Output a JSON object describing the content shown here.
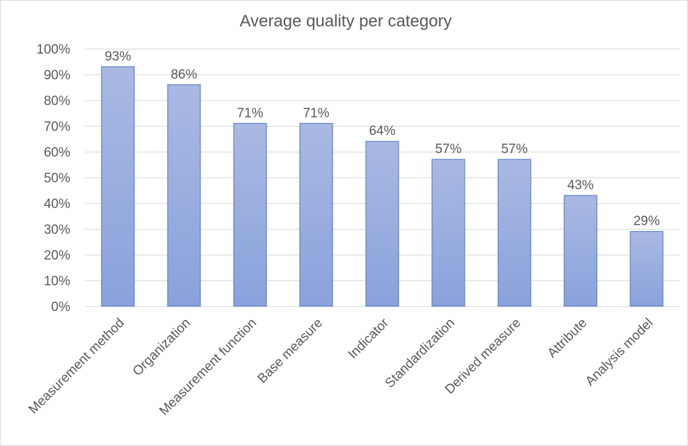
{
  "chart_data": {
    "type": "bar",
    "title": "Average quality per category",
    "categories": [
      "Measurement method",
      "Organization",
      "Measurement function",
      "Base measure",
      "Indicator",
      "Standardization",
      "Derived measure",
      "Attribute",
      "Analysis model"
    ],
    "values": [
      93,
      86,
      71,
      71,
      64,
      57,
      57,
      43,
      29
    ],
    "data_labels": [
      "93%",
      "86%",
      "71%",
      "71%",
      "64%",
      "57%",
      "57%",
      "43%",
      "29%"
    ],
    "ylim": [
      0,
      100
    ],
    "yticks": [
      0,
      10,
      20,
      30,
      40,
      50,
      60,
      70,
      80,
      90,
      100
    ],
    "ytick_labels": [
      "0%",
      "10%",
      "20%",
      "30%",
      "40%",
      "50%",
      "60%",
      "70%",
      "80%",
      "90%",
      "100%"
    ],
    "grid": true,
    "legend": "none",
    "colors": {
      "bar_top": "#a9b9e2",
      "bar_bottom": "#8aa2dc",
      "bar_border": "#4472c4",
      "text": "#595959",
      "grid": "#d9d9d9"
    }
  }
}
